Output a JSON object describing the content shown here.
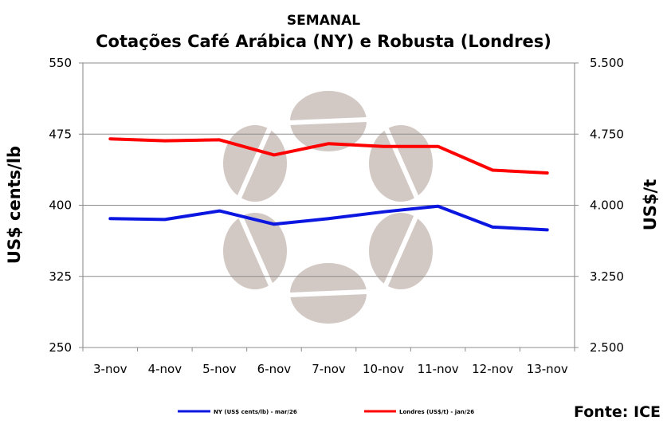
{
  "chart_data": {
    "type": "line",
    "title": "SEMANAL",
    "subtitle": "Cotações Café Arábica (NY) e Robusta (Londres)",
    "categories": [
      "3-nov",
      "4-nov",
      "5-nov",
      "6-nov",
      "7-nov",
      "10-nov",
      "11-nov",
      "12-nov",
      "13-nov"
    ],
    "y_left": {
      "label": "US$ cents/lb",
      "ticks": [
        "550",
        "475",
        "400",
        "325",
        "250"
      ],
      "ylim": [
        250,
        550
      ]
    },
    "y_right": {
      "label": "US$/t",
      "ticks": [
        "5.500",
        "4.750",
        "4.000",
        "3.250",
        "2.500"
      ],
      "ylim": [
        2500,
        5500
      ]
    },
    "series": [
      {
        "name": "NY (US$ cents/lb) - mar/26",
        "axis": "left",
        "color": "#0b16e0",
        "values": [
          386,
          385,
          394,
          380,
          386,
          393,
          399,
          377,
          374
        ]
      },
      {
        "name": "Londres (US$/t) - jan/26",
        "axis": "right",
        "color": "#ff0000",
        "values": [
          4700,
          4680,
          4690,
          4530,
          4650,
          4620,
          4620,
          4370,
          4340
        ]
      }
    ],
    "grid": true,
    "legend": "bottom",
    "source": "Fonte: ICE"
  }
}
